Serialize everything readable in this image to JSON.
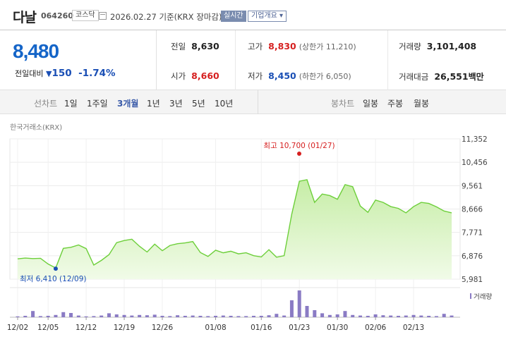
{
  "stock": {
    "name": "다날",
    "code": "064260",
    "market": "코스닥",
    "date_text": "2026.02.27  기준(KRX 장마감)",
    "realtime_label": "실시간",
    "overview_label": "기업개요 ▾"
  },
  "quote": {
    "price": "8,480",
    "change_label": "전일대비",
    "change_arrow": "▼",
    "change_amount": "150",
    "change_pct": "-1.74%",
    "prev_close_label": "전일",
    "prev_close": "8,630",
    "high_label": "고가",
    "high": "8,830",
    "upper_limit": "(상한가 11,210)",
    "volume_label": "거래량",
    "volume": "3,101,408",
    "open_label": "시가",
    "open": "8,660",
    "low_label": "저가",
    "low": "8,450",
    "lower_limit": "(하한가 6,050)",
    "value_label": "거래대금",
    "value": "26,551",
    "value_unit": "백만"
  },
  "tabs": {
    "line_label": "선차트",
    "periods": [
      "1일",
      "1주일",
      "3개월",
      "1년",
      "3년",
      "5년",
      "10년"
    ],
    "active_period": "3개월",
    "candle_label": "봉차트",
    "candles": [
      "일봉",
      "주봉",
      "월봉"
    ]
  },
  "chart_source": "한국거래소(KRX)",
  "colors": {
    "up": "#d62020",
    "down": "#1a4fb5",
    "line": "#6dcf3a",
    "area": "#dcf5c9",
    "volume": "#8a7bc4"
  },
  "chart_data": {
    "type": "area",
    "y_ticks": [
      "11,352",
      "10,456",
      "9,561",
      "8,666",
      "7,771",
      "6,876",
      "5,981"
    ],
    "ylim": [
      5981,
      11352
    ],
    "x_ticks": [
      "12/02",
      "12/05",
      "12/12",
      "12/19",
      "12/26",
      "01/08",
      "01/16",
      "01/23",
      "01/30",
      "02/06",
      "02/13"
    ],
    "x_tick_index": [
      0,
      4,
      9,
      14,
      19,
      26,
      32,
      37,
      42,
      47,
      52
    ],
    "points": [
      6760,
      6790,
      6770,
      6780,
      6560,
      6410,
      7160,
      7200,
      7290,
      7150,
      6520,
      6700,
      6920,
      7380,
      7460,
      7510,
      7240,
      7020,
      7320,
      7070,
      7270,
      7340,
      7370,
      7420,
      7000,
      6850,
      7090,
      6990,
      7050,
      6950,
      6990,
      6880,
      6830,
      7110,
      6820,
      6880,
      8470,
      9730,
      9790,
      8920,
      9240,
      9180,
      9040,
      9600,
      9520,
      8780,
      8540,
      9010,
      8920,
      8760,
      8690,
      8520,
      8760,
      8920,
      8880,
      8750,
      8590,
      8520
    ],
    "volume": [
      0.03,
      0.05,
      0.22,
      0.04,
      0.05,
      0.08,
      0.18,
      0.15,
      0.06,
      0.03,
      0.04,
      0.06,
      0.14,
      0.1,
      0.08,
      0.06,
      0.08,
      0.07,
      0.09,
      0.05,
      0.04,
      0.07,
      0.05,
      0.06,
      0.05,
      0.04,
      0.05,
      0.06,
      0.05,
      0.04,
      0.04,
      0.05,
      0.05,
      0.07,
      0.12,
      0.06,
      0.6,
      0.95,
      0.4,
      0.25,
      0.14,
      0.08,
      0.1,
      0.22,
      0.08,
      0.06,
      0.05,
      0.1,
      0.07,
      0.06,
      0.05,
      0.06,
      0.08,
      0.06,
      0.05,
      0.04,
      0.12,
      0.06
    ],
    "high_label": "최고 10,700 (01/27)",
    "high_index": 37,
    "high_value": 10700,
    "low_label": "최저 6,410 (12/09)",
    "low_index": 5,
    "low_value": 6410,
    "volume_legend": "거래량"
  }
}
